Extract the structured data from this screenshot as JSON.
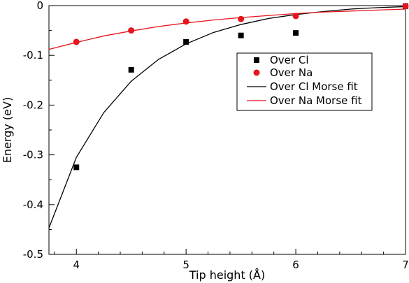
{
  "chart_data": {
    "type": "scatter",
    "xlabel": "Tip height (Å)",
    "ylabel": "Energy (eV)",
    "xlim": [
      3.75,
      7.0
    ],
    "ylim": [
      -0.5,
      0.0
    ],
    "x_ticks": [
      4,
      5,
      6,
      7
    ],
    "x_tick_labels": [
      "4",
      "5",
      "6",
      "7"
    ],
    "y_ticks": [
      0,
      -0.1,
      -0.2,
      -0.3,
      -0.4,
      -0.5
    ],
    "y_tick_labels": [
      "0",
      "-0.1",
      "-0.2",
      "-0.3",
      "-0.4",
      "-0.5"
    ],
    "grid": false,
    "legend_position": "center-right",
    "series": [
      {
        "name": "Over Cl",
        "kind": "scatter",
        "marker": "square",
        "color": "#000000",
        "x": [
          4.0,
          4.5,
          5.0,
          5.5,
          6.0,
          7.0
        ],
        "y": [
          -0.325,
          -0.129,
          -0.073,
          -0.06,
          -0.055,
          -0.001
        ]
      },
      {
        "name": "Over Na",
        "kind": "scatter",
        "marker": "circle",
        "color": "#e8141c",
        "x": [
          4.0,
          4.5,
          5.0,
          5.5,
          6.0,
          7.0
        ],
        "y": [
          -0.073,
          -0.05,
          -0.032,
          -0.027,
          -0.021,
          -0.001
        ]
      },
      {
        "name": "Over Cl Morse fit",
        "kind": "line",
        "color": "#000000",
        "x": [
          3.75,
          4.0,
          4.25,
          4.5,
          4.75,
          5.0,
          5.25,
          5.5,
          5.75,
          6.0,
          6.25,
          6.5,
          6.75,
          7.0
        ],
        "y": [
          -0.447,
          -0.305,
          -0.215,
          -0.152,
          -0.108,
          -0.077,
          -0.054,
          -0.038,
          -0.026,
          -0.018,
          -0.012,
          -0.007,
          -0.004,
          -0.002
        ]
      },
      {
        "name": "Over Na Morse fit",
        "kind": "line",
        "color": "#e8141c",
        "x": [
          3.75,
          4.0,
          4.25,
          4.5,
          4.75,
          5.0,
          5.25,
          5.5,
          5.75,
          6.0,
          6.25,
          6.5,
          6.75,
          7.0
        ],
        "y": [
          -0.088,
          -0.074,
          -0.061,
          -0.051,
          -0.042,
          -0.035,
          -0.029,
          -0.024,
          -0.02,
          -0.016,
          -0.013,
          -0.011,
          -0.009,
          -0.007
        ]
      }
    ]
  }
}
